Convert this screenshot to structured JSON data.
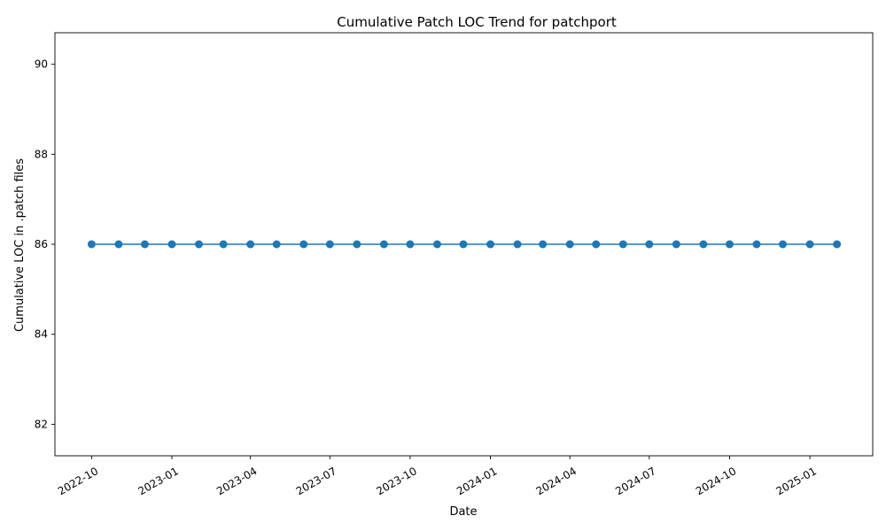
{
  "chart_data": {
    "type": "line",
    "title": "Cumulative Patch LOC Trend for patchport",
    "xlabel": "Date",
    "ylabel": "Cumulative LOC in .patch files",
    "x": [
      "2022-10-01",
      "2022-11-01",
      "2022-12-01",
      "2023-01-01",
      "2023-02-01",
      "2023-03-01",
      "2023-04-01",
      "2023-05-01",
      "2023-06-01",
      "2023-07-01",
      "2023-08-01",
      "2023-09-01",
      "2023-10-01",
      "2023-11-01",
      "2023-12-01",
      "2024-01-01",
      "2024-02-01",
      "2024-03-01",
      "2024-04-01",
      "2024-05-01",
      "2024-06-01",
      "2024-07-01",
      "2024-08-01",
      "2024-09-01",
      "2024-10-01",
      "2024-11-01",
      "2024-12-01",
      "2025-01-01",
      "2025-02-01"
    ],
    "series": [
      {
        "values": [
          86,
          86,
          86,
          86,
          86,
          86,
          86,
          86,
          86,
          86,
          86,
          86,
          86,
          86,
          86,
          86,
          86,
          86,
          86,
          86,
          86,
          86,
          86,
          86,
          86,
          86,
          86,
          86,
          86
        ]
      }
    ],
    "xlim": [
      "2022-08-20",
      "2025-03-14"
    ],
    "ylim": [
      81.3,
      90.7
    ],
    "x_ticks": [
      "2022-10",
      "2023-01",
      "2023-04",
      "2023-07",
      "2023-10",
      "2024-01",
      "2024-04",
      "2024-07",
      "2024-10",
      "2025-01"
    ],
    "y_ticks": [
      82,
      84,
      86,
      88,
      90
    ],
    "grid": false,
    "line_color": "#1f77b4",
    "marker": "circle"
  }
}
